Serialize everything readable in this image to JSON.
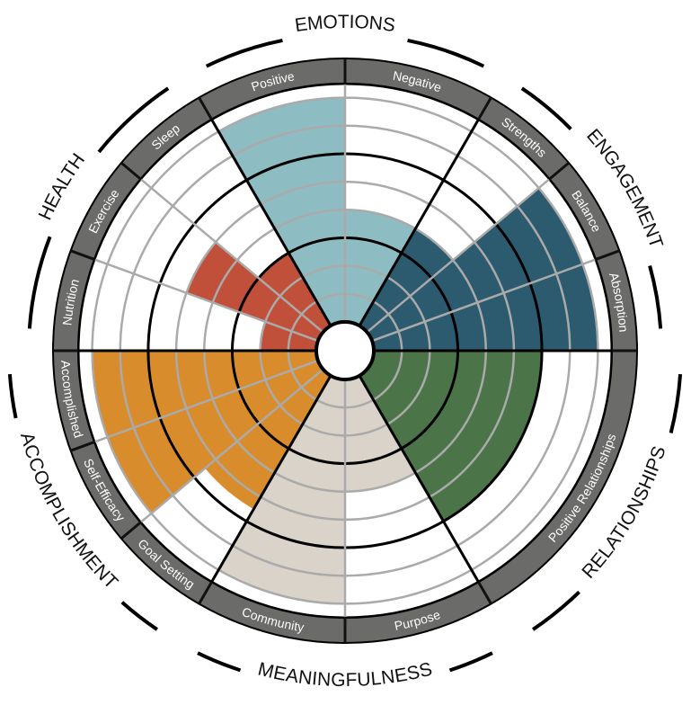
{
  "chart_data": {
    "type": "wheel",
    "series": [
      {
        "name": "EMOTIONS",
        "color": "#8dbdc2",
        "categories": [
          "Positive",
          "Negative"
        ],
        "values": [
          8,
          4
        ]
      },
      {
        "name": "ENGAGEMENT",
        "color": "#2c5a6f",
        "categories": [
          "Strengths",
          "Balance",
          "Absorption"
        ],
        "values": [
          4,
          8,
          8
        ]
      },
      {
        "name": "RELATIONSHIPS",
        "color": "#4b7548",
        "categories": [
          "Positive Relationships"
        ],
        "values": [
          6
        ]
      },
      {
        "name": "MEANINGFULNESS",
        "color": "#d9d3ca",
        "categories": [
          "Purpose",
          "Community"
        ],
        "values": [
          4,
          8
        ]
      },
      {
        "name": "ACCOMPLISHMENT",
        "color": "#d98c2b",
        "categories": [
          "Goal Setting",
          "Self-Efficacy",
          "Accomplished"
        ],
        "values": [
          5.5,
          8,
          8
        ]
      },
      {
        "name": "HEALTH",
        "color": "#c1503a",
        "categories": [
          "Nutrition",
          "Exercise",
          "Sleep"
        ],
        "values": [
          2,
          5,
          3
        ]
      }
    ],
    "rlim": [
      0,
      8.5
    ],
    "rticks": [
      1,
      2,
      4,
      5,
      7,
      8
    ],
    "major_rticks": [
      3,
      6
    ]
  }
}
